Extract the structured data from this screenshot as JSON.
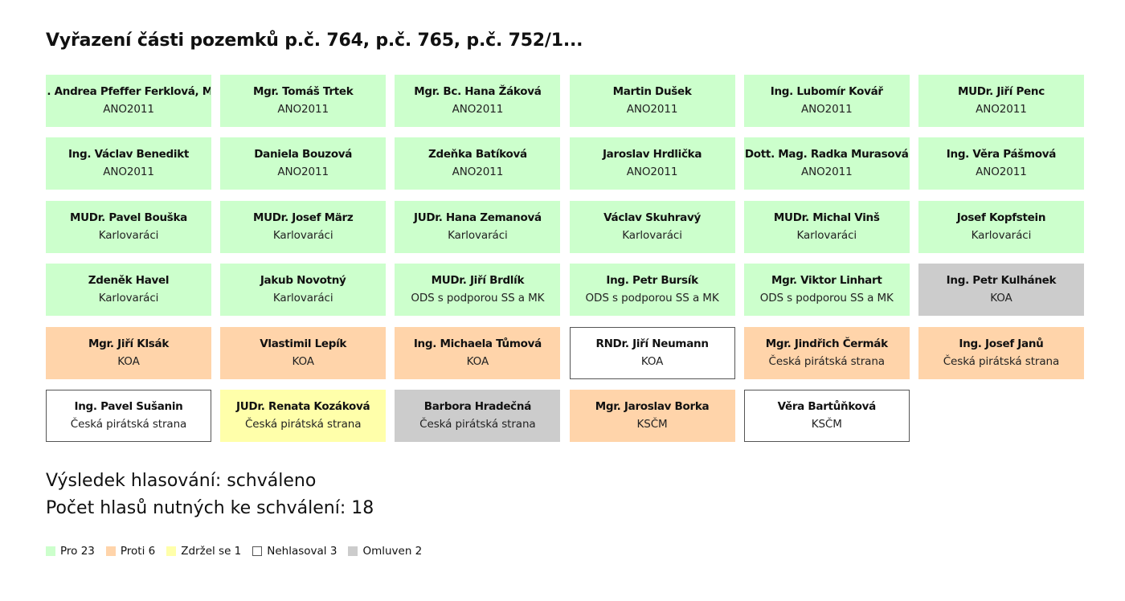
{
  "title": "Vyřazení části pozemků p.č. 764, p.č. 765, p.č. 752/1...",
  "colors": {
    "pro": "#ccffcc",
    "proti": "#ffd4aa",
    "zdrzel": "#ffffaa",
    "nehlasoval": "#ffffff",
    "omluven": "#cccccc"
  },
  "members": [
    {
      "name": "Ing. Andrea Pfeffer Ferklová, MBA",
      "party": "ANO2011",
      "vote": "pro"
    },
    {
      "name": "Mgr. Tomáš Trtek",
      "party": "ANO2011",
      "vote": "pro"
    },
    {
      "name": "Mgr. Bc. Hana Žáková",
      "party": "ANO2011",
      "vote": "pro"
    },
    {
      "name": "Martin Dušek",
      "party": "ANO2011",
      "vote": "pro"
    },
    {
      "name": "Ing. Lubomír Kovář",
      "party": "ANO2011",
      "vote": "pro"
    },
    {
      "name": "MUDr. Jiří Penc",
      "party": "ANO2011",
      "vote": "pro"
    },
    {
      "name": "Ing. Václav Benedikt",
      "party": "ANO2011",
      "vote": "pro"
    },
    {
      "name": "Daniela Bouzová",
      "party": "ANO2011",
      "vote": "pro"
    },
    {
      "name": "Zdeňka Batíková",
      "party": "ANO2011",
      "vote": "pro"
    },
    {
      "name": "Jaroslav Hrdlička",
      "party": "ANO2011",
      "vote": "pro"
    },
    {
      "name": "Dott. Mag. Radka Murasová",
      "party": "ANO2011",
      "vote": "pro"
    },
    {
      "name": "Ing. Věra Pášmová",
      "party": "ANO2011",
      "vote": "pro"
    },
    {
      "name": "MUDr. Pavel Bouška",
      "party": "Karlovaráci",
      "vote": "pro"
    },
    {
      "name": "MUDr. Josef März",
      "party": "Karlovaráci",
      "vote": "pro"
    },
    {
      "name": "JUDr. Hana Zemanová",
      "party": "Karlovaráci",
      "vote": "pro"
    },
    {
      "name": "Václav Skuhravý",
      "party": "Karlovaráci",
      "vote": "pro"
    },
    {
      "name": "MUDr. Michal Vinš",
      "party": "Karlovaráci",
      "vote": "pro"
    },
    {
      "name": "Josef Kopfstein",
      "party": "Karlovaráci",
      "vote": "pro"
    },
    {
      "name": "Zdeněk Havel",
      "party": "Karlovaráci",
      "vote": "pro"
    },
    {
      "name": "Jakub Novotný",
      "party": "Karlovaráci",
      "vote": "pro"
    },
    {
      "name": "MUDr. Jiří Brdlík",
      "party": "ODS s podporou SS a MK",
      "vote": "pro"
    },
    {
      "name": "Ing. Petr Bursík",
      "party": "ODS s podporou SS a MK",
      "vote": "pro"
    },
    {
      "name": "Mgr. Viktor Linhart",
      "party": "ODS s podporou SS a MK",
      "vote": "pro"
    },
    {
      "name": "Ing. Petr Kulhánek",
      "party": "KOA",
      "vote": "omluven"
    },
    {
      "name": "Mgr. Jiří Klsák",
      "party": "KOA",
      "vote": "proti"
    },
    {
      "name": "Vlastimil Lepík",
      "party": "KOA",
      "vote": "proti"
    },
    {
      "name": "Ing. Michaela Tůmová",
      "party": "KOA",
      "vote": "proti"
    },
    {
      "name": "RNDr. Jiří Neumann",
      "party": "KOA",
      "vote": "nehlasoval"
    },
    {
      "name": "Mgr. Jindřich Čermák",
      "party": "Česká pirátská strana",
      "vote": "proti"
    },
    {
      "name": "Ing. Josef Janů",
      "party": "Česká pirátská strana",
      "vote": "proti"
    },
    {
      "name": "Ing. Pavel Sušanin",
      "party": "Česká pirátská strana",
      "vote": "nehlasoval"
    },
    {
      "name": "JUDr. Renata Kozáková",
      "party": "Česká pirátská strana",
      "vote": "zdrzel"
    },
    {
      "name": "Barbora Hradečná",
      "party": "Česká pirátská strana",
      "vote": "omluven"
    },
    {
      "name": "Mgr. Jaroslav Borka",
      "party": "KSČM",
      "vote": "proti"
    },
    {
      "name": "Věra Bartůňková",
      "party": "KSČM",
      "vote": "nehlasoval"
    }
  ],
  "result": {
    "outcome": "Výsledek hlasování: schváleno",
    "required": "Počet hlasů nutných ke schválení: 18"
  },
  "legend": [
    {
      "key": "pro",
      "label": "Pro 23"
    },
    {
      "key": "proti",
      "label": "Proti 6"
    },
    {
      "key": "zdrzel",
      "label": "Zdržel se 1"
    },
    {
      "key": "nehlasoval",
      "label": "Nehlasoval 3"
    },
    {
      "key": "omluven",
      "label": "Omluven 2"
    }
  ]
}
